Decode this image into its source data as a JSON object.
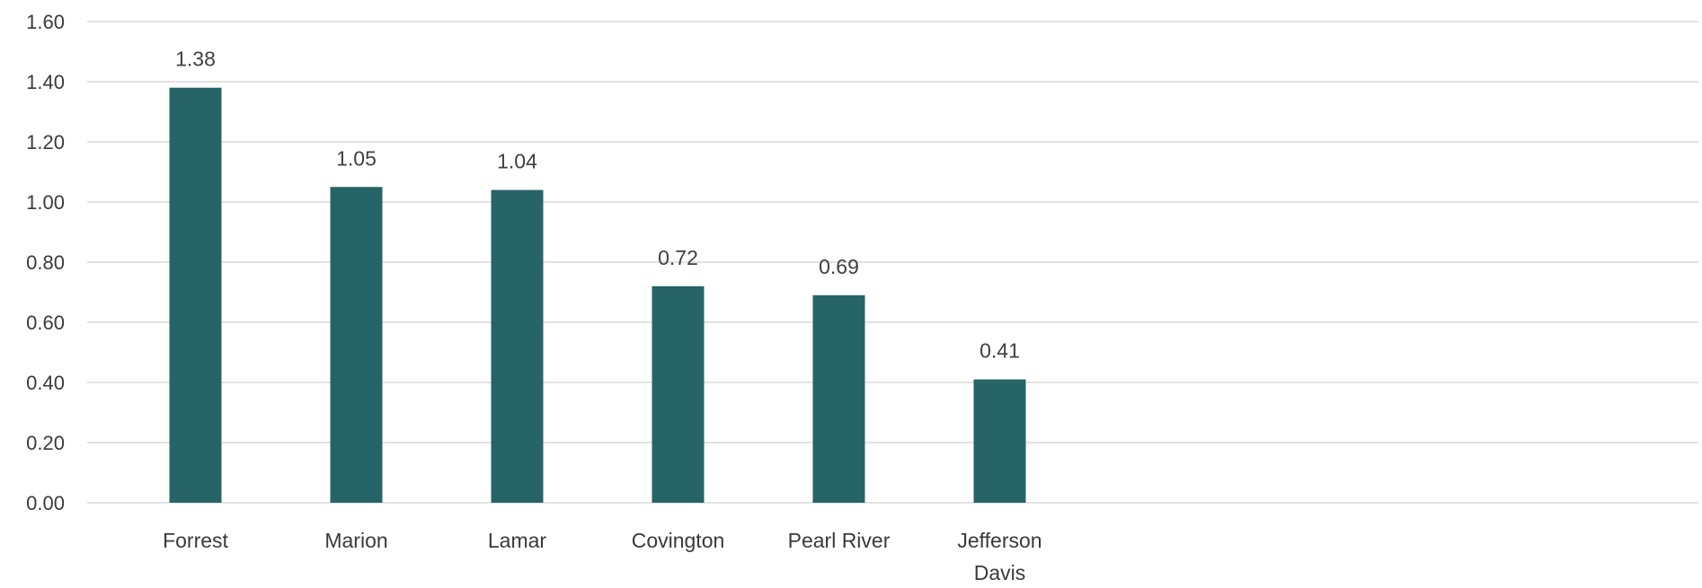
{
  "chart_data": {
    "type": "bar",
    "categories": [
      "Forrest",
      "Marion",
      "Lamar",
      "Covington",
      "Pearl River",
      "Jefferson Davis"
    ],
    "category_label_lines": [
      [
        "Forrest"
      ],
      [
        "Marion"
      ],
      [
        "Lamar"
      ],
      [
        "Covington"
      ],
      [
        "Pearl River"
      ],
      [
        "Jefferson",
        "Davis"
      ]
    ],
    "values": [
      1.38,
      1.05,
      1.04,
      0.72,
      0.69,
      0.41
    ],
    "data_labels": [
      "1.38",
      "1.05",
      "1.04",
      "0.72",
      "0.69",
      "0.41"
    ],
    "yticks": [
      "0.00",
      "0.20",
      "0.40",
      "0.60",
      "0.80",
      "1.00",
      "1.20",
      "1.40",
      "1.60"
    ],
    "ylim": [
      0,
      1.6
    ],
    "title": "",
    "xlabel": "",
    "ylabel": "",
    "grid": true,
    "legend": "none",
    "bar_color": "#266468"
  }
}
